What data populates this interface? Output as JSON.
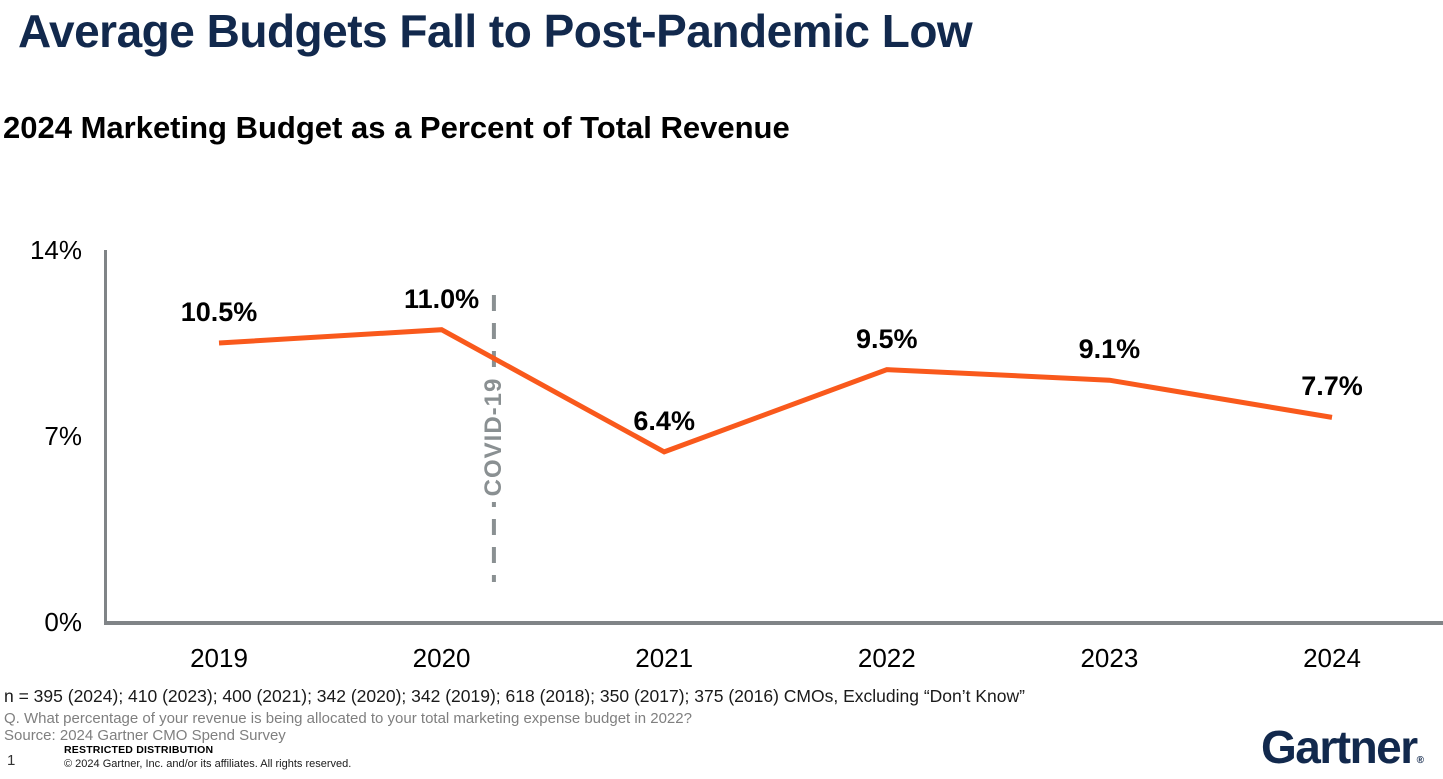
{
  "slide": {
    "title": "Average Budgets Fall to Post-Pandemic Low",
    "subtitle": "2024 Marketing Budget as a Percent of Total Revenue",
    "footnote_n": "n = 395 (2024); 410 (2023); 400 (2021); 342 (2020); 342 (2019); 618 (2018); 350 (2017); 375 (2016) CMOs, Excluding “Don’t Know”",
    "footnote_q": "Q. What percentage of your revenue is being allocated to your total marketing expense budget in 2022?",
    "footnote_source": "Source: 2024 Gartner CMO Spend Survey",
    "restricted": "RESTRICTED DISTRIBUTION",
    "page_number": "1",
    "copyright": "© 2024 Gartner, Inc. and/or its affiliates. All rights reserved.",
    "logo_text": "Gartner",
    "logo_registered_mark": "®"
  },
  "colors": {
    "navy": "#12294D",
    "footnote_gray": "#7F7F7F"
  },
  "chart_data": {
    "type": "line",
    "title": "2024 Marketing Budget as a Percent of Total Revenue",
    "categories": [
      "2019",
      "2020",
      "2021",
      "2022",
      "2023",
      "2024"
    ],
    "values": [
      10.5,
      11.0,
      6.4,
      9.5,
      9.1,
      7.7
    ],
    "data_labels": [
      "10.5%",
      "11.0%",
      "6.4%",
      "9.5%",
      "9.1%",
      "7.7%"
    ],
    "y_ticks": [
      "0%",
      "7%",
      "14%"
    ],
    "y_tick_values": [
      0,
      7,
      14
    ],
    "ylim": [
      0,
      14
    ],
    "xlabel": "",
    "ylabel": "",
    "grid": false,
    "legend": false,
    "line_color": "#F9591C",
    "axis_color": "#808487",
    "annotation": {
      "label": "COVID-19",
      "x_index": 1.235,
      "color": "#8A9092"
    }
  }
}
